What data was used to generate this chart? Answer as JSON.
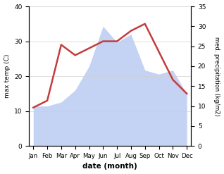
{
  "months": [
    "Jan",
    "Feb",
    "Mar",
    "Apr",
    "May",
    "Jun",
    "Jul",
    "Aug",
    "Sep",
    "Oct",
    "Nov",
    "Dec"
  ],
  "temperature": [
    11,
    13,
    29,
    26,
    28,
    30,
    30,
    33,
    35,
    27,
    19,
    15
  ],
  "precipitation": [
    10,
    10,
    11,
    14,
    20,
    30,
    26,
    28,
    19,
    18,
    19,
    13
  ],
  "temp_color": "#c43c3c",
  "precip_color": "#b0c4f0",
  "temp_ylim": [
    0,
    40
  ],
  "precip_ylim": [
    0,
    35
  ],
  "temp_yticks": [
    0,
    10,
    20,
    30,
    40
  ],
  "precip_yticks": [
    0,
    5,
    10,
    15,
    20,
    25,
    30,
    35
  ],
  "xlabel": "date (month)",
  "ylabel_left": "max temp (C)",
  "ylabel_right": "med. precipitation (kg/m2)",
  "bg_color": "#ffffff",
  "grid_color": "#d0d0d0"
}
